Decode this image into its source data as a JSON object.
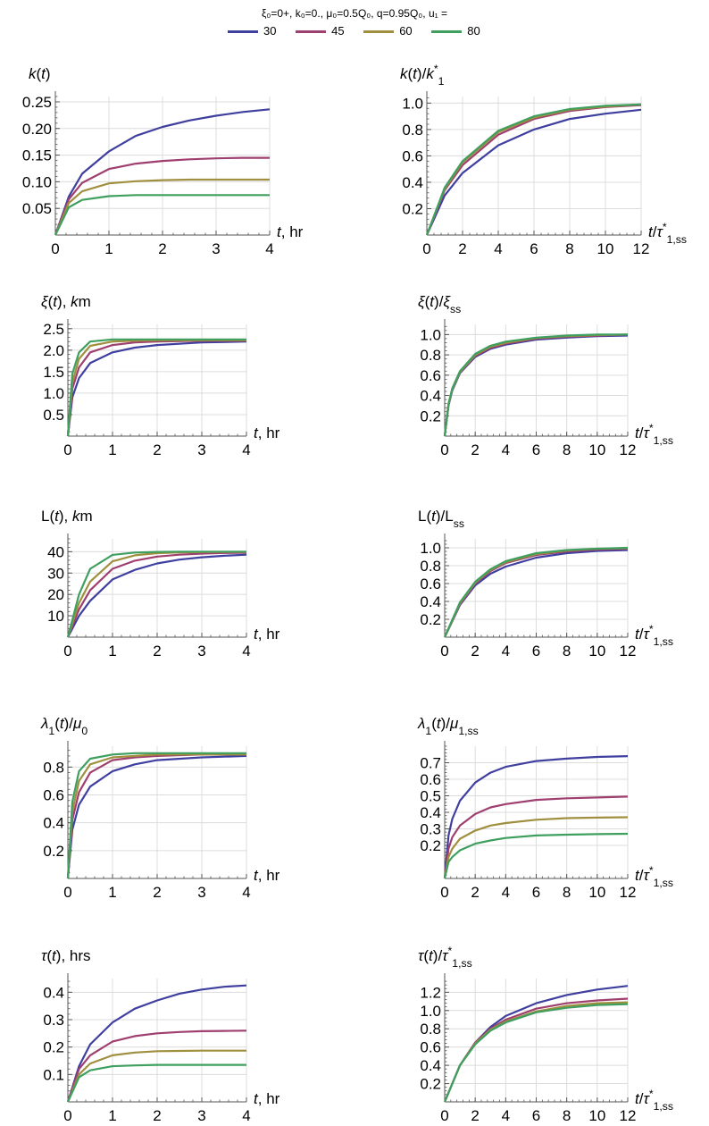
{
  "header": {
    "params": "ξ₀=0+,  k₀=0.,  μ₀=0.5Q₀,  q=0.95Q₀,  u₁ =",
    "legend": [
      {
        "label": "30",
        "color": "#3f3f9f"
      },
      {
        "label": "45",
        "color": "#9f3f6f"
      },
      {
        "label": "60",
        "color": "#9f8f3f"
      },
      {
        "label": "80",
        "color": "#3f9f5f"
      }
    ]
  },
  "chart_data": [
    {
      "type": "line",
      "title": "k(t)",
      "xlabel": "t, hr",
      "xlim": [
        0,
        4
      ],
      "ylim": [
        0,
        0.26
      ],
      "xticks": [
        "0",
        "1",
        "2",
        "3",
        "4"
      ],
      "yticks": [
        "0.05",
        "0.10",
        "0.15",
        "0.20",
        "0.25"
      ],
      "x": [
        0,
        0.25,
        0.5,
        1,
        1.5,
        2,
        2.5,
        3,
        3.5,
        4
      ],
      "series": [
        {
          "name": "30",
          "values": [
            0,
            0.072,
            0.115,
            0.157,
            0.186,
            0.203,
            0.215,
            0.224,
            0.231,
            0.236
          ]
        },
        {
          "name": "45",
          "values": [
            0,
            0.067,
            0.098,
            0.124,
            0.134,
            0.139,
            0.142,
            0.144,
            0.145,
            0.145
          ]
        },
        {
          "name": "60",
          "values": [
            0,
            0.06,
            0.082,
            0.097,
            0.101,
            0.103,
            0.104,
            0.104,
            0.104,
            0.104
          ]
        },
        {
          "name": "80",
          "values": [
            0,
            0.052,
            0.066,
            0.073,
            0.075,
            0.075,
            0.075,
            0.075,
            0.075,
            0.075
          ]
        }
      ]
    },
    {
      "type": "line",
      "title": "k(t)/k*₁",
      "xlabel": "t/τ*₁,ss",
      "xlim": [
        0,
        12
      ],
      "ylim": [
        0,
        1.05
      ],
      "xticks": [
        "0",
        "2",
        "4",
        "6",
        "8",
        "10",
        "12"
      ],
      "yticks": [
        "0.2",
        "0.4",
        "0.6",
        "0.8",
        "1.0"
      ],
      "x": [
        0,
        1,
        2,
        4,
        6,
        8,
        10,
        12
      ],
      "series": [
        {
          "name": "30",
          "values": [
            0,
            0.3,
            0.47,
            0.68,
            0.8,
            0.88,
            0.92,
            0.95
          ]
        },
        {
          "name": "45",
          "values": [
            0,
            0.34,
            0.53,
            0.76,
            0.88,
            0.94,
            0.97,
            0.985
          ]
        },
        {
          "name": "60",
          "values": [
            0,
            0.35,
            0.55,
            0.78,
            0.89,
            0.95,
            0.975,
            0.99
          ]
        },
        {
          "name": "80",
          "values": [
            0,
            0.36,
            0.56,
            0.79,
            0.9,
            0.955,
            0.98,
            0.99
          ]
        }
      ]
    },
    {
      "type": "line",
      "title": "ξ(t), km",
      "xlabel": "t, hr",
      "xlim": [
        0,
        4
      ],
      "ylim": [
        0,
        2.6
      ],
      "xticks": [
        "0",
        "1",
        "2",
        "3",
        "4"
      ],
      "yticks": [
        "0.5",
        "1.0",
        "1.5",
        "2.0",
        "2.5"
      ],
      "x": [
        0,
        0.1,
        0.25,
        0.5,
        1,
        1.5,
        2,
        3,
        4
      ],
      "series": [
        {
          "name": "30",
          "values": [
            0,
            0.9,
            1.35,
            1.7,
            1.95,
            2.06,
            2.12,
            2.18,
            2.2
          ]
        },
        {
          "name": "45",
          "values": [
            0,
            1.1,
            1.6,
            1.95,
            2.12,
            2.18,
            2.2,
            2.22,
            2.22
          ]
        },
        {
          "name": "60",
          "values": [
            0,
            1.25,
            1.8,
            2.1,
            2.2,
            2.22,
            2.23,
            2.23,
            2.23
          ]
        },
        {
          "name": "80",
          "values": [
            0,
            1.45,
            1.95,
            2.2,
            2.25,
            2.25,
            2.25,
            2.25,
            2.25
          ]
        }
      ]
    },
    {
      "type": "line",
      "title": "ξ(t)/ξss",
      "xlabel": "t/τ*₁,ss",
      "xlim": [
        0,
        12
      ],
      "ylim": [
        0,
        1.1
      ],
      "xticks": [
        "0",
        "2",
        "4",
        "6",
        "8",
        "10",
        "12"
      ],
      "yticks": [
        "0.2",
        "0.4",
        "0.6",
        "0.8",
        "1.0"
      ],
      "x": [
        0,
        0.25,
        0.5,
        1,
        2,
        3,
        4,
        6,
        8,
        10,
        12
      ],
      "series": [
        {
          "name": "30",
          "values": [
            0,
            0.3,
            0.45,
            0.62,
            0.78,
            0.86,
            0.9,
            0.95,
            0.97,
            0.985,
            0.99
          ]
        },
        {
          "name": "45",
          "values": [
            0,
            0.31,
            0.46,
            0.63,
            0.79,
            0.87,
            0.91,
            0.96,
            0.98,
            0.99,
            1.0
          ]
        },
        {
          "name": "60",
          "values": [
            0,
            0.31,
            0.46,
            0.63,
            0.8,
            0.88,
            0.92,
            0.965,
            0.985,
            0.995,
            1.0
          ]
        },
        {
          "name": "80",
          "values": [
            0,
            0.32,
            0.47,
            0.64,
            0.81,
            0.89,
            0.93,
            0.97,
            0.99,
            1.0,
            1.0
          ]
        }
      ]
    },
    {
      "type": "line",
      "title": "L(t), km",
      "xlabel": "t, hr",
      "xlim": [
        0,
        4
      ],
      "ylim": [
        0,
        46
      ],
      "xticks": [
        "0",
        "1",
        "2",
        "3",
        "4"
      ],
      "yticks": [
        "10",
        "20",
        "30",
        "40"
      ],
      "x": [
        0,
        0.25,
        0.5,
        1,
        1.5,
        2,
        2.5,
        3,
        3.5,
        4
      ],
      "series": [
        {
          "name": "30",
          "values": [
            0,
            10,
            17,
            27,
            31.5,
            34.5,
            36.3,
            37.4,
            38.1,
            38.6
          ]
        },
        {
          "name": "45",
          "values": [
            0,
            13,
            22,
            32,
            35.8,
            37.7,
            38.6,
            39.1,
            39.4,
            39.5
          ]
        },
        {
          "name": "60",
          "values": [
            0,
            16,
            26,
            35.5,
            38.3,
            39.3,
            39.7,
            39.8,
            39.9,
            39.9
          ]
        },
        {
          "name": "80",
          "values": [
            0,
            20,
            32,
            38.5,
            39.6,
            39.9,
            40,
            40,
            40,
            40
          ]
        }
      ]
    },
    {
      "type": "line",
      "title": "L(t)/Lss",
      "xlabel": "t/τ*₁,ss",
      "xlim": [
        0,
        12
      ],
      "ylim": [
        0,
        1.1
      ],
      "xticks": [
        "0",
        "2",
        "4",
        "6",
        "8",
        "10",
        "12"
      ],
      "yticks": [
        "0.2",
        "0.4",
        "0.6",
        "0.8",
        "1.0"
      ],
      "x": [
        0,
        1,
        2,
        3,
        4,
        6,
        8,
        10,
        12
      ],
      "series": [
        {
          "name": "30",
          "values": [
            0,
            0.36,
            0.58,
            0.71,
            0.79,
            0.89,
            0.94,
            0.965,
            0.975
          ]
        },
        {
          "name": "45",
          "values": [
            0,
            0.37,
            0.6,
            0.74,
            0.83,
            0.92,
            0.96,
            0.98,
            0.99
          ]
        },
        {
          "name": "60",
          "values": [
            0,
            0.38,
            0.61,
            0.75,
            0.84,
            0.93,
            0.97,
            0.99,
            0.995
          ]
        },
        {
          "name": "80",
          "values": [
            0,
            0.39,
            0.62,
            0.76,
            0.85,
            0.94,
            0.975,
            0.99,
            1.0
          ]
        }
      ]
    },
    {
      "type": "line",
      "title": "λ₁(t)/μ₀",
      "xlabel": "t, hr",
      "xlim": [
        0,
        4
      ],
      "ylim": [
        0,
        0.95
      ],
      "xticks": [
        "0",
        "1",
        "2",
        "3",
        "4"
      ],
      "yticks": [
        "0.2",
        "0.4",
        "0.6",
        "0.8"
      ],
      "x": [
        0,
        0.1,
        0.25,
        0.5,
        1,
        1.5,
        2,
        3,
        4
      ],
      "series": [
        {
          "name": "30",
          "values": [
            0,
            0.35,
            0.53,
            0.66,
            0.77,
            0.82,
            0.85,
            0.87,
            0.88
          ]
        },
        {
          "name": "45",
          "values": [
            0,
            0.42,
            0.62,
            0.76,
            0.85,
            0.87,
            0.88,
            0.89,
            0.89
          ]
        },
        {
          "name": "60",
          "values": [
            0,
            0.48,
            0.7,
            0.82,
            0.87,
            0.88,
            0.89,
            0.89,
            0.89
          ]
        },
        {
          "name": "80",
          "values": [
            0,
            0.55,
            0.77,
            0.86,
            0.89,
            0.9,
            0.9,
            0.9,
            0.9
          ]
        }
      ]
    },
    {
      "type": "line",
      "title": "λ₁(t)/μ₁,ss",
      "xlabel": "t/τ*₁,ss",
      "xlim": [
        0,
        12
      ],
      "ylim": [
        0,
        0.8
      ],
      "xticks": [
        "0",
        "2",
        "4",
        "6",
        "8",
        "10",
        "12"
      ],
      "yticks": [
        "0.2",
        "0.3",
        "0.4",
        "0.5",
        "0.6",
        "0.7"
      ],
      "x": [
        0,
        0.25,
        0.5,
        1,
        2,
        3,
        4,
        6,
        8,
        10,
        12
      ],
      "series": [
        {
          "name": "30",
          "values": [
            0,
            0.26,
            0.36,
            0.47,
            0.58,
            0.64,
            0.675,
            0.71,
            0.725,
            0.735,
            0.74
          ]
        },
        {
          "name": "45",
          "values": [
            0,
            0.18,
            0.25,
            0.32,
            0.39,
            0.43,
            0.45,
            0.475,
            0.485,
            0.49,
            0.495
          ]
        },
        {
          "name": "60",
          "values": [
            0,
            0.13,
            0.18,
            0.24,
            0.29,
            0.32,
            0.335,
            0.355,
            0.365,
            0.368,
            0.37
          ]
        },
        {
          "name": "80",
          "values": [
            0,
            0.1,
            0.13,
            0.17,
            0.21,
            0.23,
            0.245,
            0.26,
            0.265,
            0.268,
            0.27
          ]
        }
      ]
    },
    {
      "type": "line",
      "title": "τ(t), hrs",
      "xlabel": "t, hr",
      "xlim": [
        0,
        4
      ],
      "ylim": [
        0,
        0.45
      ],
      "xticks": [
        "0",
        "1",
        "2",
        "3",
        "4"
      ],
      "yticks": [
        "0.1",
        "0.2",
        "0.3",
        "0.4"
      ],
      "x": [
        0,
        0.25,
        0.5,
        1,
        1.5,
        2,
        2.5,
        3,
        3.5,
        4
      ],
      "series": [
        {
          "name": "30",
          "values": [
            0,
            0.13,
            0.21,
            0.29,
            0.34,
            0.37,
            0.395,
            0.41,
            0.42,
            0.425
          ]
        },
        {
          "name": "45",
          "values": [
            0,
            0.12,
            0.17,
            0.22,
            0.24,
            0.25,
            0.255,
            0.258,
            0.259,
            0.26
          ]
        },
        {
          "name": "60",
          "values": [
            0,
            0.1,
            0.14,
            0.17,
            0.18,
            0.185,
            0.186,
            0.187,
            0.187,
            0.187
          ]
        },
        {
          "name": "80",
          "values": [
            0,
            0.09,
            0.115,
            0.13,
            0.133,
            0.135,
            0.135,
            0.135,
            0.135,
            0.135
          ]
        }
      ]
    },
    {
      "type": "line",
      "title": "τ(t)/τ*₁,ss",
      "xlabel": "t/τ*₁,ss",
      "xlim": [
        0,
        12
      ],
      "ylim": [
        0,
        1.35
      ],
      "xticks": [
        "0",
        "2",
        "4",
        "6",
        "8",
        "10",
        "12"
      ],
      "yticks": [
        "0.2",
        "0.4",
        "0.6",
        "0.8",
        "1.0",
        "1.2"
      ],
      "x": [
        0,
        1,
        2,
        3,
        4,
        6,
        8,
        10,
        12
      ],
      "series": [
        {
          "name": "30",
          "values": [
            0,
            0.4,
            0.65,
            0.82,
            0.94,
            1.08,
            1.17,
            1.23,
            1.27
          ]
        },
        {
          "name": "45",
          "values": [
            0,
            0.4,
            0.65,
            0.8,
            0.9,
            1.02,
            1.08,
            1.11,
            1.13
          ]
        },
        {
          "name": "60",
          "values": [
            0,
            0.4,
            0.64,
            0.79,
            0.88,
            0.99,
            1.05,
            1.08,
            1.09
          ]
        },
        {
          "name": "80",
          "values": [
            0,
            0.4,
            0.63,
            0.78,
            0.87,
            0.98,
            1.03,
            1.06,
            1.07
          ]
        }
      ]
    }
  ]
}
